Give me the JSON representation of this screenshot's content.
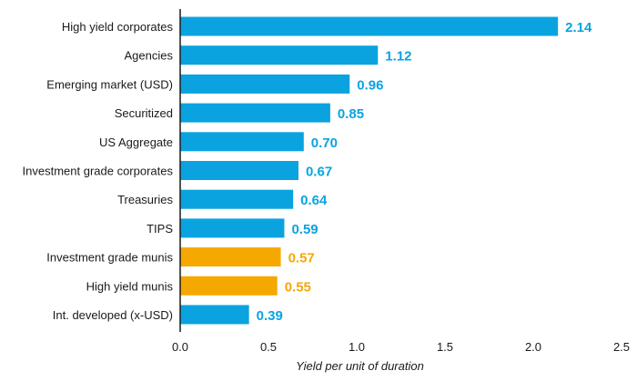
{
  "chart_data": {
    "type": "bar",
    "orientation": "horizontal",
    "categories": [
      "High yield corporates",
      "Agencies",
      "Emerging market (USD)",
      "Securitized",
      "US Aggregate",
      "Investment grade corporates",
      "Treasuries",
      "TIPS",
      "Investment grade munis",
      "High yield munis",
      "Int. developed (x-USD)"
    ],
    "values": [
      2.14,
      1.12,
      0.96,
      0.85,
      0.7,
      0.67,
      0.64,
      0.59,
      0.57,
      0.55,
      0.39
    ],
    "value_labels": [
      "2.14",
      "1.12",
      "0.96",
      "0.85",
      "0.70",
      "0.67",
      "0.64",
      "0.59",
      "0.57",
      "0.55",
      "0.39"
    ],
    "groups": [
      "taxable",
      "taxable",
      "taxable",
      "taxable",
      "taxable",
      "taxable",
      "taxable",
      "taxable",
      "muni",
      "muni",
      "taxable"
    ],
    "colors": {
      "taxable": "#0aa3e0",
      "muni": "#f5a800",
      "axis": "#1a1a1a"
    },
    "xlim": [
      0,
      2.5
    ],
    "xticks": [
      0.0,
      0.5,
      1.0,
      1.5,
      2.0,
      2.5
    ],
    "xtick_labels": [
      "0.0",
      "0.5",
      "1.0",
      "1.5",
      "2.0",
      "2.5"
    ],
    "xlabel": "Yield per unit of duration",
    "ylabel": "",
    "title": "",
    "grid": false
  }
}
